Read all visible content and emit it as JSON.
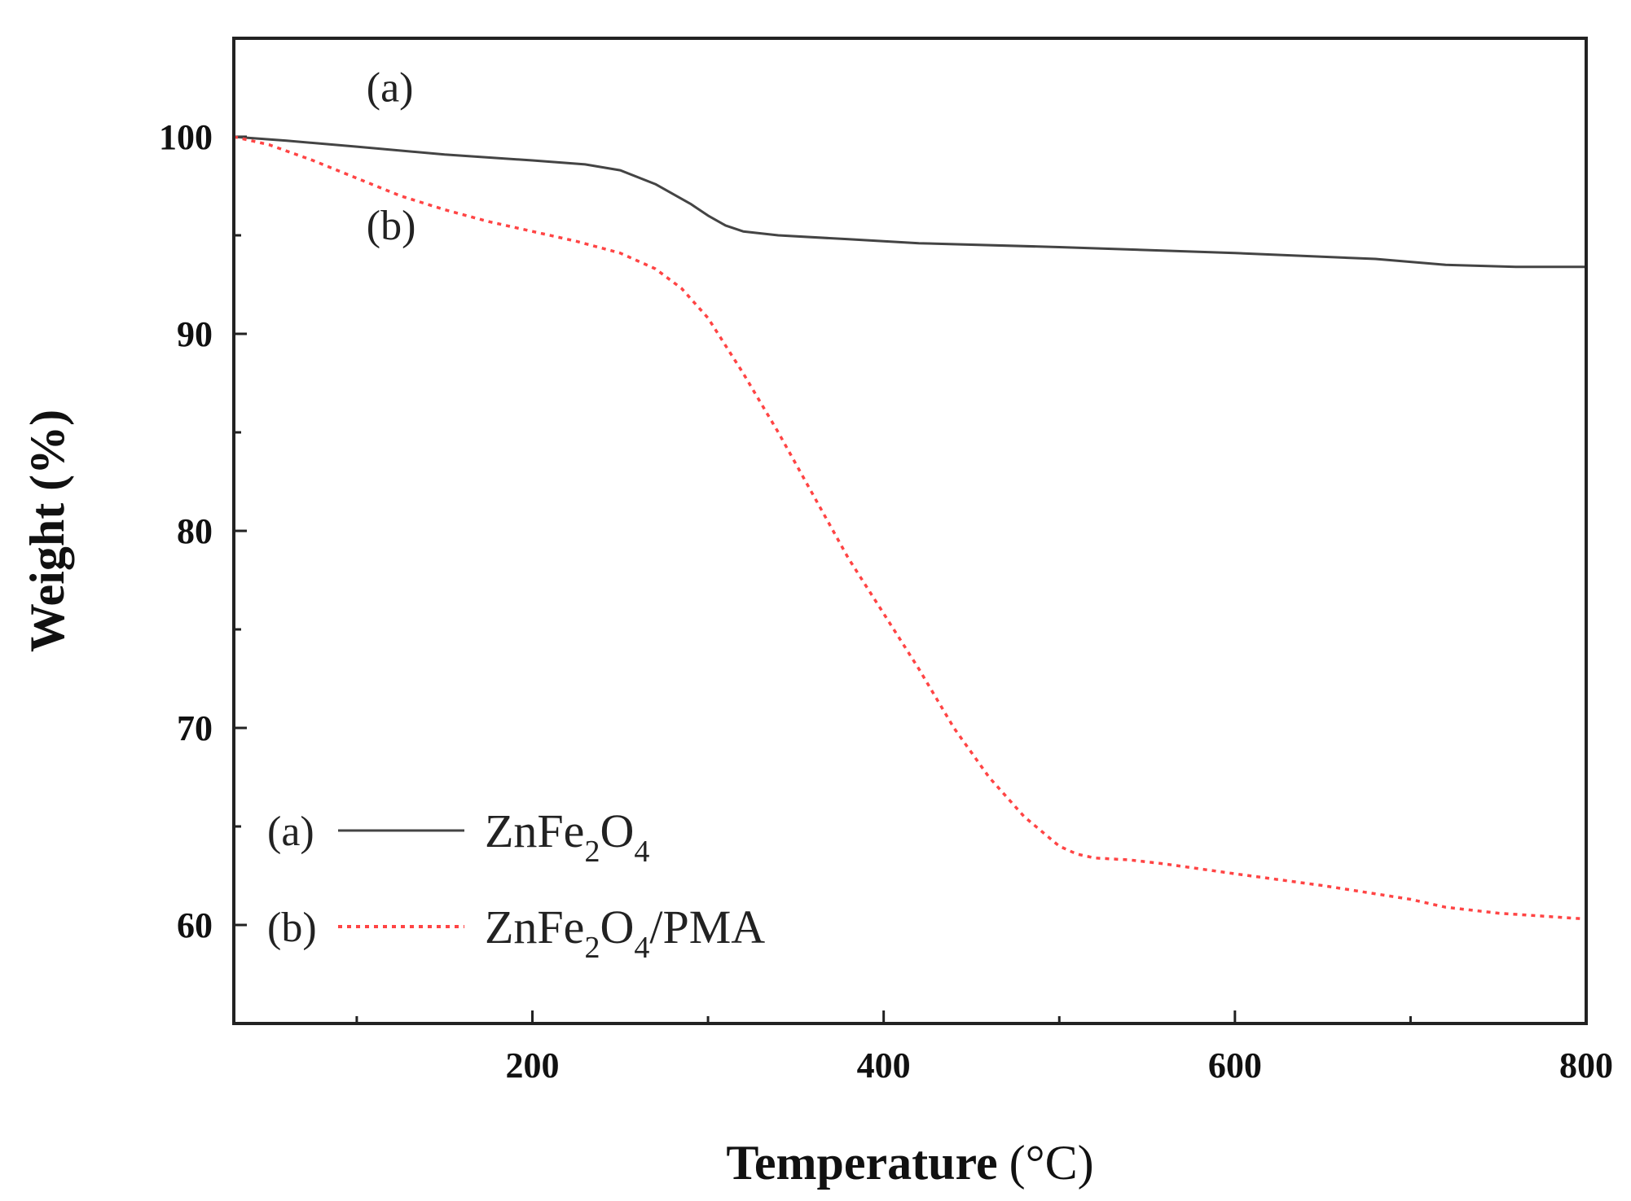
{
  "chart_data": {
    "type": "line",
    "title": "",
    "xlabel": "Temperature",
    "xlabel_unit": "(°C)",
    "ylabel": "Weight (%)",
    "xlim": [
      30,
      800
    ],
    "ylim": [
      55,
      105
    ],
    "x_ticks": [
      200,
      400,
      600,
      800
    ],
    "y_ticks": [
      60,
      70,
      80,
      90,
      100
    ],
    "grid": false,
    "legend_position": "bottom-left",
    "annotations": [
      {
        "text": "(a)",
        "x": 80,
        "y": 101.8
      },
      {
        "text": "(b)",
        "x": 80,
        "y": 94.8
      }
    ],
    "series": [
      {
        "name": "ZnFe2O4",
        "legend_tag": "(a)",
        "legend_parts": [
          "ZnFe",
          "2",
          "O",
          "4"
        ],
        "style": "solid",
        "color": "#444444",
        "x": [
          30,
          60,
          100,
          150,
          200,
          230,
          250,
          270,
          290,
          300,
          310,
          320,
          340,
          380,
          420,
          500,
          600,
          680,
          720,
          760,
          800
        ],
        "y": [
          100,
          99.8,
          99.5,
          99.1,
          98.8,
          98.6,
          98.3,
          97.6,
          96.6,
          96.0,
          95.5,
          95.2,
          95.0,
          94.8,
          94.6,
          94.4,
          94.1,
          93.8,
          93.5,
          93.4,
          93.4
        ]
      },
      {
        "name": "ZnFe2O4/PMA",
        "legend_tag": "(b)",
        "legend_parts": [
          "ZnFe",
          "2",
          "O",
          "4",
          "/PMA"
        ],
        "style": "dotted",
        "color": "#ff4444",
        "x": [
          30,
          50,
          75,
          100,
          125,
          150,
          175,
          200,
          225,
          250,
          270,
          285,
          300,
          320,
          340,
          360,
          380,
          400,
          420,
          440,
          460,
          480,
          500,
          510,
          520,
          540,
          560,
          600,
          650,
          700,
          720,
          750,
          800
        ],
        "y": [
          100,
          99.6,
          98.8,
          97.9,
          97.0,
          96.3,
          95.7,
          95.2,
          94.7,
          94.1,
          93.3,
          92.3,
          90.8,
          88.0,
          85.0,
          81.8,
          78.6,
          75.8,
          73.0,
          70.0,
          67.5,
          65.5,
          64.0,
          63.6,
          63.4,
          63.3,
          63.1,
          62.6,
          62.0,
          61.3,
          60.9,
          60.6,
          60.3
        ]
      }
    ]
  }
}
